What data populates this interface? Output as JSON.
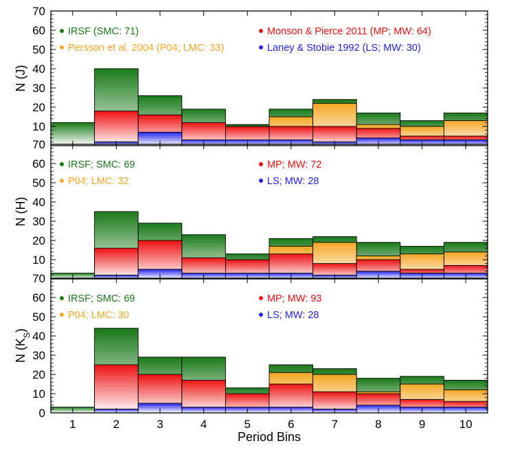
{
  "chart_data": {
    "type": "bar",
    "stacking": "overlaid-histogram",
    "categories": [
      "1",
      "2",
      "3",
      "4",
      "5",
      "6",
      "7",
      "8",
      "9",
      "10"
    ],
    "xlabel": "Period Bins",
    "ylim": [
      0,
      70
    ],
    "yticks": [
      "0",
      "10",
      "20",
      "30",
      "40",
      "50",
      "60",
      "70"
    ],
    "colors": {
      "irsf": "#1a7a1a",
      "mp": "#ee1111",
      "p04": "#f5a623",
      "ls": "#2222ee"
    },
    "panels": [
      {
        "id": "J",
        "ylabel": "N (J)",
        "ylabel_main": "N (J",
        "ylabel_sub": "",
        "ylabel_close": ")",
        "legend": {
          "irsf": "IRSF (SMC: 71)",
          "mp": "Monson & Pierce 2011 (MP; MW: 64)",
          "p04": "Persson et al. 2004 (P04; LMC: 33)",
          "ls": "Laney & Stobie 1992 (LS; MW: 30)"
        },
        "series": [
          {
            "name": "IRSF",
            "key": "irsf",
            "values": [
              12,
              40,
              26,
              19,
              11,
              19,
              24,
              17,
              13,
              17
            ]
          },
          {
            "name": "P04",
            "key": "p04",
            "values": [
              0,
              0,
              0,
              0,
              0,
              15,
              22,
              11,
              10,
              13
            ]
          },
          {
            "name": "MP",
            "key": "mp",
            "values": [
              0,
              18,
              16,
              12,
              10,
              10,
              10,
              9,
              5,
              5
            ]
          },
          {
            "name": "LS",
            "key": "ls",
            "values": [
              0,
              2,
              7,
              3,
              3,
              3,
              2,
              4,
              3,
              3
            ]
          }
        ]
      },
      {
        "id": "H",
        "ylabel": "N (H)",
        "ylabel_main": "N (H",
        "ylabel_sub": "",
        "ylabel_close": ")",
        "legend": {
          "irsf": "IRSF; SMC: 69",
          "mp": "MP; MW: 72",
          "p04": "P04; LMC: 32",
          "ls": "LS; MW: 28"
        },
        "series": [
          {
            "name": "IRSF",
            "key": "irsf",
            "values": [
              3,
              35,
              29,
              23,
              13,
              21,
              22,
              19,
              17,
              19
            ]
          },
          {
            "name": "P04",
            "key": "p04",
            "values": [
              0,
              0,
              0,
              0,
              0,
              17,
              19,
              12,
              13,
              14
            ]
          },
          {
            "name": "MP",
            "key": "mp",
            "values": [
              0,
              16,
              20,
              11,
              10,
              13,
              8,
              10,
              5,
              7
            ]
          },
          {
            "name": "LS",
            "key": "ls",
            "values": [
              0,
              2,
              5,
              3,
              3,
              3,
              2,
              4,
              3,
              3
            ]
          }
        ]
      },
      {
        "id": "Ks",
        "ylabel": "N (Ks)",
        "ylabel_main": "N (K",
        "ylabel_sub": "S",
        "ylabel_close": ")",
        "legend": {
          "irsf": "IRSF; SMC: 69",
          "mp": "MP; MW: 93",
          "p04": "P04; LMC: 30",
          "ls": "LS; MW: 28"
        },
        "series": [
          {
            "name": "IRSF",
            "key": "irsf",
            "values": [
              3,
              44,
              29,
              29,
              13,
              25,
              23,
              18,
              19,
              17
            ]
          },
          {
            "name": "P04",
            "key": "p04",
            "values": [
              0,
              0,
              0,
              0,
              0,
              21,
              20,
              11,
              15,
              12
            ]
          },
          {
            "name": "MP",
            "key": "mp",
            "values": [
              0,
              25,
              20,
              17,
              10,
              15,
              11,
              10,
              7,
              6
            ]
          },
          {
            "name": "LS",
            "key": "ls",
            "values": [
              0,
              2,
              5,
              3,
              3,
              3,
              2,
              4,
              3,
              3
            ]
          }
        ]
      }
    ]
  }
}
